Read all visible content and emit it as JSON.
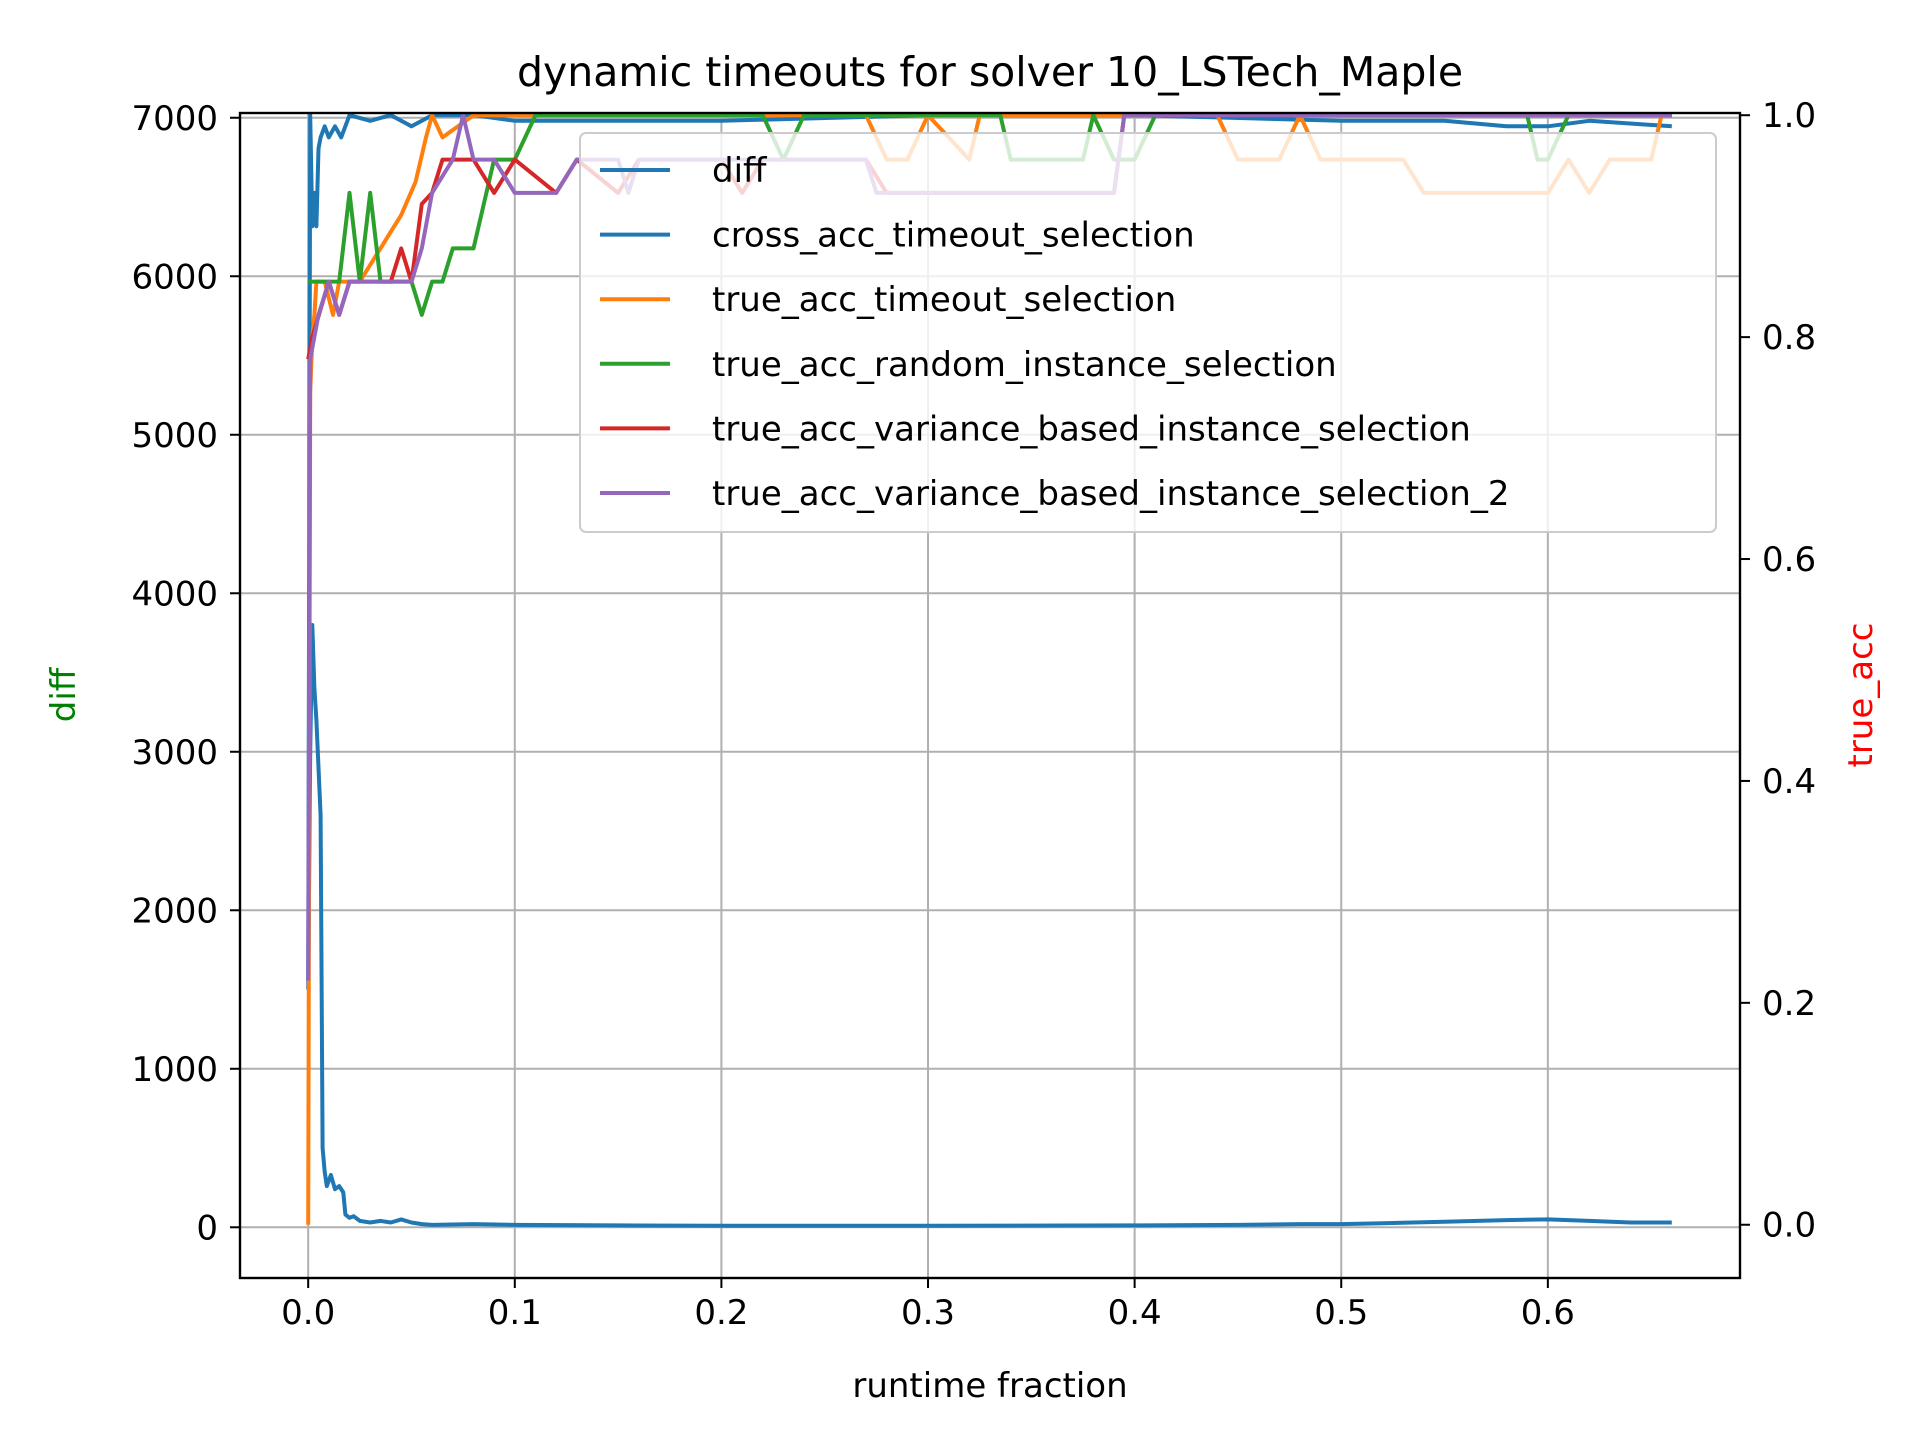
{
  "chart_data": {
    "type": "line",
    "title": "dynamic timeouts for solver 10_LSTech_Maple",
    "xlabel": "runtime fraction",
    "ylabel_left": "diff",
    "ylabel_right": "true_acc",
    "xlim": [
      -0.033,
      0.693
    ],
    "ylim_left": [
      -320,
      7030
    ],
    "ylim_right": [
      -0.048,
      1.002
    ],
    "grid": true,
    "legend_placement": "upper-right",
    "x_ticks": [
      "0.0",
      "0.1",
      "0.2",
      "0.3",
      "0.4",
      "0.5",
      "0.6"
    ],
    "y_left_ticks": [
      "0",
      "1000",
      "2000",
      "3000",
      "4000",
      "5000",
      "6000",
      "7000"
    ],
    "y_right_ticks": [
      "0.0",
      "0.2",
      "0.4",
      "0.6",
      "0.8",
      "1.0"
    ],
    "colors": {
      "diff": "#1f77b4",
      "cross_acc_timeout_selection": "#1f77b4",
      "true_acc_timeout_selection": "#ff7f0e",
      "true_acc_random_instance_selection": "#2ca02c",
      "true_acc_variance_based_instance_selection": "#d62728",
      "true_acc_variance_based_instance_selection_2": "#9467bd",
      "ylabel_left": "#008000",
      "ylabel_right": "#ff0000"
    },
    "series": [
      {
        "name": "diff",
        "axis": "left",
        "points": [
          [
            0,
            1500
          ],
          [
            0.001,
            3000
          ],
          [
            0.002,
            3800
          ],
          [
            0.003,
            3400
          ],
          [
            0.004,
            3200
          ],
          [
            0.005,
            2900
          ],
          [
            0.006,
            2600
          ],
          [
            0.007,
            500
          ],
          [
            0.008,
            350
          ],
          [
            0.009,
            260
          ],
          [
            0.011,
            330
          ],
          [
            0.013,
            240
          ],
          [
            0.015,
            260
          ],
          [
            0.017,
            220
          ],
          [
            0.018,
            80
          ],
          [
            0.02,
            60
          ],
          [
            0.022,
            70
          ],
          [
            0.025,
            40
          ],
          [
            0.03,
            30
          ],
          [
            0.035,
            40
          ],
          [
            0.04,
            30
          ],
          [
            0.045,
            50
          ],
          [
            0.05,
            30
          ],
          [
            0.055,
            20
          ],
          [
            0.06,
            15
          ],
          [
            0.08,
            20
          ],
          [
            0.1,
            15
          ],
          [
            0.15,
            12
          ],
          [
            0.2,
            10
          ],
          [
            0.3,
            10
          ],
          [
            0.4,
            12
          ],
          [
            0.45,
            15
          ],
          [
            0.48,
            20
          ],
          [
            0.5,
            20
          ],
          [
            0.52,
            25
          ],
          [
            0.55,
            35
          ],
          [
            0.58,
            45
          ],
          [
            0.6,
            50
          ],
          [
            0.62,
            40
          ],
          [
            0.64,
            30
          ],
          [
            0.66,
            30
          ]
        ]
      },
      {
        "name": "cross_acc_timeout_selection",
        "axis": "right",
        "points": [
          [
            0,
            0.22
          ],
          [
            0.001,
            1.0
          ],
          [
            0.002,
            0.9
          ],
          [
            0.003,
            0.93
          ],
          [
            0.004,
            0.9
          ],
          [
            0.005,
            0.97
          ],
          [
            0.006,
            0.98
          ],
          [
            0.008,
            0.99
          ],
          [
            0.01,
            0.98
          ],
          [
            0.013,
            0.99
          ],
          [
            0.016,
            0.98
          ],
          [
            0.02,
            1.0
          ],
          [
            0.03,
            0.995
          ],
          [
            0.04,
            1.0
          ],
          [
            0.05,
            0.99
          ],
          [
            0.06,
            1.0
          ],
          [
            0.08,
            1.0
          ],
          [
            0.1,
            0.995
          ],
          [
            0.15,
            0.995
          ],
          [
            0.2,
            0.995
          ],
          [
            0.3,
            1.0
          ],
          [
            0.4,
            1.0
          ],
          [
            0.5,
            0.995
          ],
          [
            0.55,
            0.995
          ],
          [
            0.58,
            0.99
          ],
          [
            0.6,
            0.99
          ],
          [
            0.62,
            0.995
          ],
          [
            0.66,
            0.99
          ]
        ]
      },
      {
        "name": "true_acc_timeout_selection",
        "axis": "right",
        "points": [
          [
            0,
            0
          ],
          [
            0.001,
            0.75
          ],
          [
            0.002,
            0.8
          ],
          [
            0.003,
            0.82
          ],
          [
            0.004,
            0.85
          ],
          [
            0.008,
            0.85
          ],
          [
            0.012,
            0.82
          ],
          [
            0.015,
            0.85
          ],
          [
            0.025,
            0.85
          ],
          [
            0.035,
            0.88
          ],
          [
            0.045,
            0.91
          ],
          [
            0.052,
            0.94
          ],
          [
            0.057,
            0.98
          ],
          [
            0.06,
            1.0
          ],
          [
            0.065,
            0.98
          ],
          [
            0.08,
            1.0
          ],
          [
            0.1,
            1.0
          ],
          [
            0.2,
            1.0
          ],
          [
            0.27,
            1.0
          ],
          [
            0.28,
            0.96
          ],
          [
            0.29,
            0.96
          ],
          [
            0.3,
            1.0
          ],
          [
            0.31,
            0.98
          ],
          [
            0.32,
            0.96
          ],
          [
            0.325,
            1.0
          ],
          [
            0.35,
            1.0
          ],
          [
            0.4,
            1.0
          ],
          [
            0.44,
            1.0
          ],
          [
            0.45,
            0.96
          ],
          [
            0.47,
            0.96
          ],
          [
            0.48,
            1.0
          ],
          [
            0.49,
            0.96
          ],
          [
            0.53,
            0.96
          ],
          [
            0.54,
            0.93
          ],
          [
            0.55,
            0.93
          ],
          [
            0.59,
            0.93
          ],
          [
            0.6,
            0.93
          ],
          [
            0.61,
            0.96
          ],
          [
            0.62,
            0.93
          ],
          [
            0.63,
            0.96
          ],
          [
            0.64,
            0.96
          ],
          [
            0.65,
            0.96
          ],
          [
            0.655,
            1.0
          ],
          [
            0.66,
            1.0
          ]
        ]
      },
      {
        "name": "true_acc_random_instance_selection",
        "axis": "right",
        "points": [
          [
            0,
            0.85
          ],
          [
            0.01,
            0.85
          ],
          [
            0.015,
            0.85
          ],
          [
            0.02,
            0.93
          ],
          [
            0.025,
            0.85
          ],
          [
            0.03,
            0.93
          ],
          [
            0.035,
            0.85
          ],
          [
            0.045,
            0.85
          ],
          [
            0.05,
            0.85
          ],
          [
            0.055,
            0.82
          ],
          [
            0.06,
            0.85
          ],
          [
            0.065,
            0.85
          ],
          [
            0.07,
            0.88
          ],
          [
            0.08,
            0.88
          ],
          [
            0.09,
            0.96
          ],
          [
            0.1,
            0.96
          ],
          [
            0.11,
            1.0
          ],
          [
            0.12,
            1.0
          ],
          [
            0.2,
            1.0
          ],
          [
            0.22,
            1.0
          ],
          [
            0.23,
            0.96
          ],
          [
            0.24,
            1.0
          ],
          [
            0.3,
            1.0
          ],
          [
            0.335,
            1.0
          ],
          [
            0.34,
            0.96
          ],
          [
            0.375,
            0.96
          ],
          [
            0.38,
            1.0
          ],
          [
            0.39,
            0.96
          ],
          [
            0.4,
            0.96
          ],
          [
            0.41,
            1.0
          ],
          [
            0.59,
            1.0
          ],
          [
            0.595,
            0.96
          ],
          [
            0.6,
            0.96
          ],
          [
            0.61,
            1.0
          ],
          [
            0.66,
            1.0
          ]
        ]
      },
      {
        "name": "true_acc_variance_based_instance_selection",
        "axis": "right",
        "points": [
          [
            0,
            0.78
          ],
          [
            0.002,
            0.8
          ],
          [
            0.01,
            0.85
          ],
          [
            0.015,
            0.82
          ],
          [
            0.02,
            0.85
          ],
          [
            0.04,
            0.85
          ],
          [
            0.045,
            0.88
          ],
          [
            0.05,
            0.85
          ],
          [
            0.055,
            0.92
          ],
          [
            0.06,
            0.93
          ],
          [
            0.065,
            0.96
          ],
          [
            0.08,
            0.96
          ],
          [
            0.09,
            0.93
          ],
          [
            0.1,
            0.96
          ],
          [
            0.12,
            0.93
          ],
          [
            0.13,
            0.96
          ],
          [
            0.15,
            0.93
          ],
          [
            0.16,
            0.96
          ],
          [
            0.2,
            0.96
          ],
          [
            0.21,
            0.93
          ],
          [
            0.22,
            0.96
          ],
          [
            0.27,
            0.96
          ],
          [
            0.28,
            0.93
          ],
          [
            0.39,
            0.93
          ],
          [
            0.395,
            1.0
          ],
          [
            0.66,
            1.0
          ]
        ]
      },
      {
        "name": "true_acc_variance_based_instance_selection_2",
        "axis": "right",
        "points": [
          [
            0,
            0.22
          ],
          [
            0.001,
            0.78
          ],
          [
            0.005,
            0.82
          ],
          [
            0.01,
            0.85
          ],
          [
            0.015,
            0.82
          ],
          [
            0.02,
            0.85
          ],
          [
            0.05,
            0.85
          ],
          [
            0.055,
            0.88
          ],
          [
            0.06,
            0.93
          ],
          [
            0.07,
            0.96
          ],
          [
            0.075,
            1.0
          ],
          [
            0.08,
            0.96
          ],
          [
            0.09,
            0.96
          ],
          [
            0.1,
            0.93
          ],
          [
            0.12,
            0.93
          ],
          [
            0.13,
            0.96
          ],
          [
            0.15,
            0.96
          ],
          [
            0.155,
            0.93
          ],
          [
            0.16,
            0.96
          ],
          [
            0.27,
            0.96
          ],
          [
            0.275,
            0.93
          ],
          [
            0.39,
            0.93
          ],
          [
            0.395,
            1.0
          ],
          [
            0.66,
            1.0
          ]
        ]
      }
    ]
  }
}
